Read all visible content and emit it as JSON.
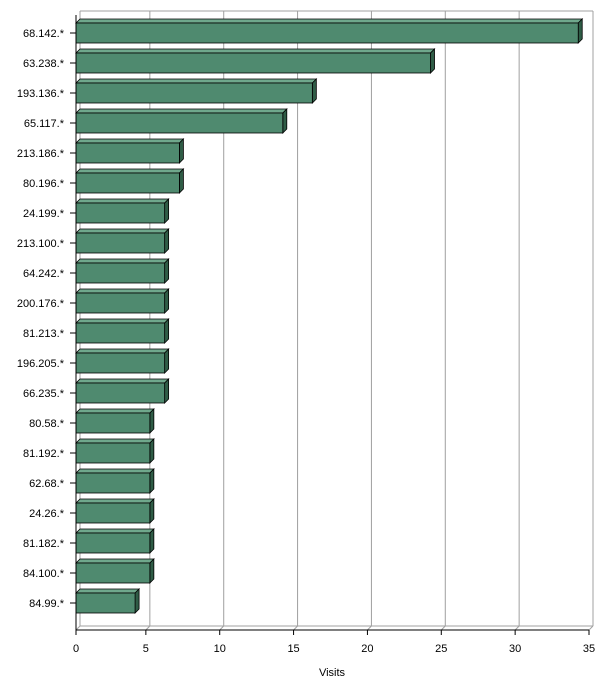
{
  "chart_data": {
    "type": "bar",
    "orientation": "horizontal",
    "bar_style": "3d",
    "categories": [
      "68.142.*",
      "63.238.*",
      "193.136.*",
      "65.117.*",
      "213.186.*",
      "80.196.*",
      "24.199.*",
      "213.100.*",
      "64.242.*",
      "200.176.*",
      "81.213.*",
      "196.205.*",
      "66.235.*",
      "80.58.*",
      "81.192.*",
      "62.68.*",
      "24.26.*",
      "81.182.*",
      "84.100.*",
      "84.99.*"
    ],
    "values": [
      34,
      24,
      16,
      14,
      7,
      7,
      6,
      6,
      6,
      6,
      6,
      6,
      6,
      5,
      5,
      5,
      5,
      5,
      5,
      4
    ],
    "xlabel": "Visits",
    "xlim": [
      0,
      35
    ],
    "xticks": [
      0,
      5,
      10,
      15,
      20,
      25,
      30,
      35
    ],
    "grid": true,
    "legend": "none",
    "colors": {
      "bar_front": "#4f8a6f",
      "bar_top": "#6fa88c",
      "bar_side": "#2f5c46",
      "grid": "#a0a0a0",
      "axis": "#000000"
    }
  }
}
